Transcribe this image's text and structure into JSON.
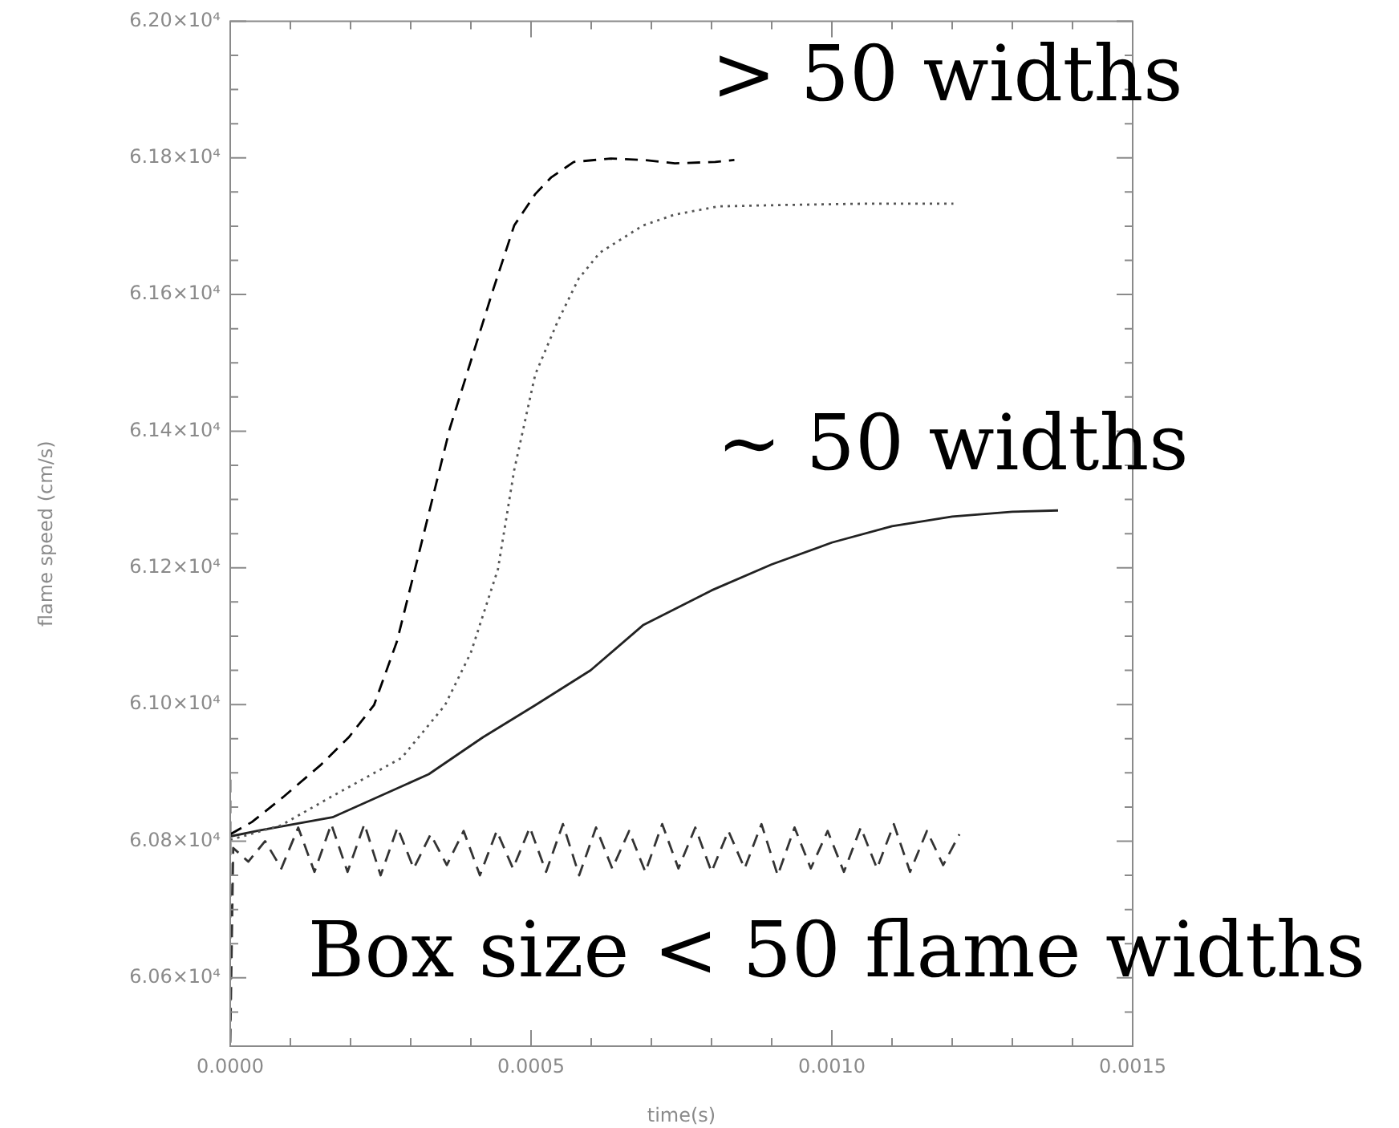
{
  "chart_data": {
    "type": "line",
    "xlabel": "time(s)",
    "ylabel": "flame speed (cm/s)",
    "xlim": [
      0,
      0.0015
    ],
    "xticks": [
      {
        "value": 0,
        "label": "0.0000"
      },
      {
        "value": 0.0005,
        "label": "0.0005"
      },
      {
        "value": 0.001,
        "label": "0.0010"
      },
      {
        "value": 0.0015,
        "label": "0.0015"
      }
    ],
    "ylim": [
      60500,
      62000
    ],
    "yticks": [
      {
        "value": 60600,
        "label": "6.06×10⁴"
      },
      {
        "value": 60800,
        "label": "6.08×10⁴"
      },
      {
        "value": 61000,
        "label": "6.10×10⁴"
      },
      {
        "value": 61200,
        "label": "6.12×10⁴"
      },
      {
        "value": 61400,
        "label": "6.14×10⁴"
      },
      {
        "value": 61600,
        "label": "6.16×10⁴"
      },
      {
        "value": 61800,
        "label": "6.18×10⁴"
      },
      {
        "value": 62000,
        "label": "6.20×10⁴"
      }
    ],
    "grid": false,
    "legend": false,
    "marker": "none",
    "annotations": [
      "> 50 widths",
      "~ 50 widths",
      "Box size < 50 flame widths"
    ],
    "series": [
      {
        "color": "#000000",
        "line_style": "dashed",
        "x": [
          0,
          3.6e-05,
          9e-05,
          0.000151,
          0.000197,
          0.000239,
          0.000277,
          0.000317,
          0.000365,
          0.000437,
          0.000472,
          0.000507,
          0.000533,
          0.000571,
          0.000632,
          0.000686,
          0.000739,
          0.000806,
          0.000838
        ],
        "values": [
          60810,
          60828,
          60866,
          60912,
          60952,
          60999,
          61092,
          61233,
          61404,
          61607,
          61701,
          61747,
          61771,
          61794,
          61799,
          61797,
          61792,
          61794,
          61797
        ]
      },
      {
        "color": "#555555",
        "line_style": "dotted",
        "x": [
          0,
          8.4e-05,
          0.00017,
          0.000285,
          0.000357,
          0.0004,
          0.000445,
          0.000472,
          0.000507,
          0.000544,
          0.000579,
          0.000614,
          0.000686,
          0.000739,
          0.000812,
          0.000919,
          0.001061,
          0.001202
        ],
        "values": [
          60802,
          60823,
          60866,
          60922,
          60999,
          61076,
          61198,
          61343,
          61483,
          61560,
          61623,
          61661,
          61701,
          61717,
          61729,
          61731,
          61733,
          61733
        ]
      },
      {
        "color": "#222222",
        "line_style": "solid",
        "x": [
          0,
          5e-05,
          0.00017,
          0.00033,
          0.00042,
          0.000507,
          0.000599,
          0.000686,
          0.0008,
          0.0009,
          0.001,
          0.0011,
          0.0012,
          0.0013,
          0.001376
        ],
        "values": [
          60807,
          60816,
          60835,
          60898,
          60952,
          60999,
          61050,
          61116,
          61167,
          61205,
          61237,
          61261,
          61275,
          61282,
          61284
        ]
      },
      {
        "color": "#333333",
        "line_style": "dashed",
        "x": [
          0,
          0,
          5e-06,
          3e-05,
          5.8e-05,
          8.5e-05,
          0.000113,
          0.00014,
          0.000168,
          0.000195,
          0.000223,
          0.00025,
          0.000278,
          0.000305,
          0.000333,
          0.00036,
          0.000388,
          0.000415,
          0.000443,
          0.00047,
          0.000498,
          0.000525,
          0.000553,
          0.00058,
          0.000608,
          0.000635,
          0.000663,
          0.00069,
          0.000718,
          0.000745,
          0.000773,
          0.0008,
          0.000828,
          0.000855,
          0.000883,
          0.00091,
          0.000938,
          0.000965,
          0.000993,
          0.00102,
          0.001048,
          0.001075,
          0.001103,
          0.00113,
          0.001158,
          0.001185,
          0.001212
        ],
        "values": [
          60890,
          60500,
          60790,
          60770,
          60800,
          60760,
          60820,
          60755,
          60825,
          60755,
          60825,
          60750,
          60820,
          60760,
          60810,
          60765,
          60815,
          60750,
          60815,
          60760,
          60820,
          60755,
          60825,
          60750,
          60820,
          60760,
          60815,
          60755,
          60825,
          60760,
          60820,
          60755,
          60815,
          60760,
          60825,
          60750,
          60820,
          60760,
          60815,
          60755,
          60820,
          60760,
          60825,
          60755,
          60815,
          60765,
          60810
        ]
      }
    ]
  }
}
